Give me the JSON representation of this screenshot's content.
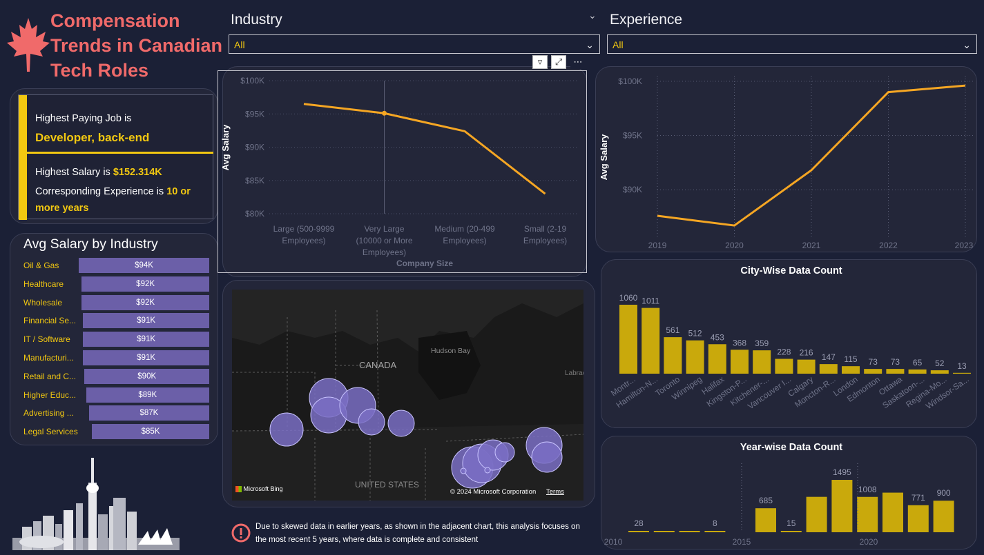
{
  "header": {
    "title_line1": "Compensation",
    "title_line2": "Trends in Canadian",
    "title_line3": "Tech Roles"
  },
  "filters": {
    "industry_label": "Industry",
    "industry_value": "All",
    "experience_label": "Experience",
    "experience_value": "All"
  },
  "kpi": {
    "job_prefix": "Highest Paying Job is",
    "job_value": "Developer, back-end",
    "salary_prefix": "Highest Salary is",
    "salary_value": "$152.314K",
    "experience_prefix": "Corresponding Experience is",
    "experience_value": "10 or more years"
  },
  "industry_chart": {
    "title": "Avg Salary by Industry",
    "items": [
      {
        "label": "Oil & Gas",
        "value": "$94K",
        "num": 94
      },
      {
        "label": "Healthcare",
        "value": "$92K",
        "num": 92
      },
      {
        "label": "Wholesale",
        "value": "$92K",
        "num": 92
      },
      {
        "label": "Financial Se...",
        "value": "$91K",
        "num": 91
      },
      {
        "label": "IT / Software",
        "value": "$91K",
        "num": 91
      },
      {
        "label": "Manufacturi...",
        "value": "$91K",
        "num": 91
      },
      {
        "label": "Retail and C...",
        "value": "$90K",
        "num": 90
      },
      {
        "label": "Higher Educ...",
        "value": "$89K",
        "num": 89
      },
      {
        "label": "Advertising ...",
        "value": "$87K",
        "num": 87
      },
      {
        "label": "Legal Services",
        "value": "$85K",
        "num": 85
      }
    ]
  },
  "company_chart": {
    "type": "line",
    "ylabel": "Avg Salary",
    "xlabel": "Company Size",
    "yticks": [
      "$100K",
      "$95K",
      "$90K",
      "$85K",
      "$80K"
    ],
    "categories": [
      [
        "Large (500-9999",
        "Employees)"
      ],
      [
        "Very Large",
        "(10000 or More",
        "Employees)"
      ],
      [
        "Medium (20-499",
        "Employees)"
      ],
      [
        "Small (2-19",
        "Employees)"
      ]
    ],
    "values": [
      96.5,
      95.1,
      92.4,
      83.0
    ],
    "ylim": [
      80,
      100
    ]
  },
  "experience_chart": {
    "type": "line",
    "ylabel": "Avg Salary",
    "yticks": [
      "$100K",
      "$95K",
      "$90K"
    ],
    "x": [
      "2019",
      "2020",
      "2021",
      "2022",
      "2023"
    ],
    "values": [
      87.6,
      86.7,
      91.8,
      99.0,
      99.6
    ],
    "ylim": [
      85.5,
      100.5
    ]
  },
  "map": {
    "country_label": "CANADA",
    "us_label": "UNITED STATES",
    "bay_label": "Hudson Bay",
    "labrador_label": "Labrad",
    "attribution": "Microsoft Bing",
    "copyright": "© 2024 Microsoft Corporation",
    "terms": "Terms"
  },
  "city_chart": {
    "title": "City-Wise Data Count",
    "type": "bar",
    "categories": [
      "Montr...",
      "Hamilton-N...",
      "Toronto",
      "Winnipeg",
      "Halifax",
      "Kingston-P...",
      "Kitchener-...",
      "Vancouver I...",
      "Calgary",
      "Moncton-R...",
      "London",
      "Edmonton",
      "Ottawa",
      "Saskatoon-...",
      "Regina-Mo...",
      "Windsor-Sa..."
    ],
    "values": [
      1060,
      1011,
      561,
      512,
      453,
      368,
      359,
      228,
      216,
      147,
      115,
      73,
      73,
      65,
      52,
      13
    ]
  },
  "year_chart": {
    "title": "Year-wise Data Count",
    "type": "bar",
    "x": [
      2010,
      2011,
      2012,
      2013,
      2014,
      2015,
      2016,
      2017,
      2018,
      2019,
      2020,
      2021,
      2022,
      2023
    ],
    "values": [
      28,
      16,
      6,
      8,
      null,
      685,
      15,
      1010,
      1495,
      1008,
      1130,
      771,
      900,
      null
    ],
    "labels": [
      "28",
      "",
      "",
      "8",
      "",
      "685",
      "15",
      "",
      "1495",
      "1008",
      "",
      "771",
      "900",
      ""
    ],
    "xticks": [
      "2010",
      "2015",
      "2020"
    ]
  },
  "note": {
    "text": "Due to skewed data in earlier years, as shown in the adjacent chart, this analysis focuses on the most recent 5 years, where data is complete and consistent"
  },
  "colors": {
    "accent_yellow": "#f2c811",
    "line_orange": "#f5a623",
    "title_red": "#f06a6a",
    "bar_purple": "#6b5fa8",
    "bar_gold": "#c9a90c"
  }
}
